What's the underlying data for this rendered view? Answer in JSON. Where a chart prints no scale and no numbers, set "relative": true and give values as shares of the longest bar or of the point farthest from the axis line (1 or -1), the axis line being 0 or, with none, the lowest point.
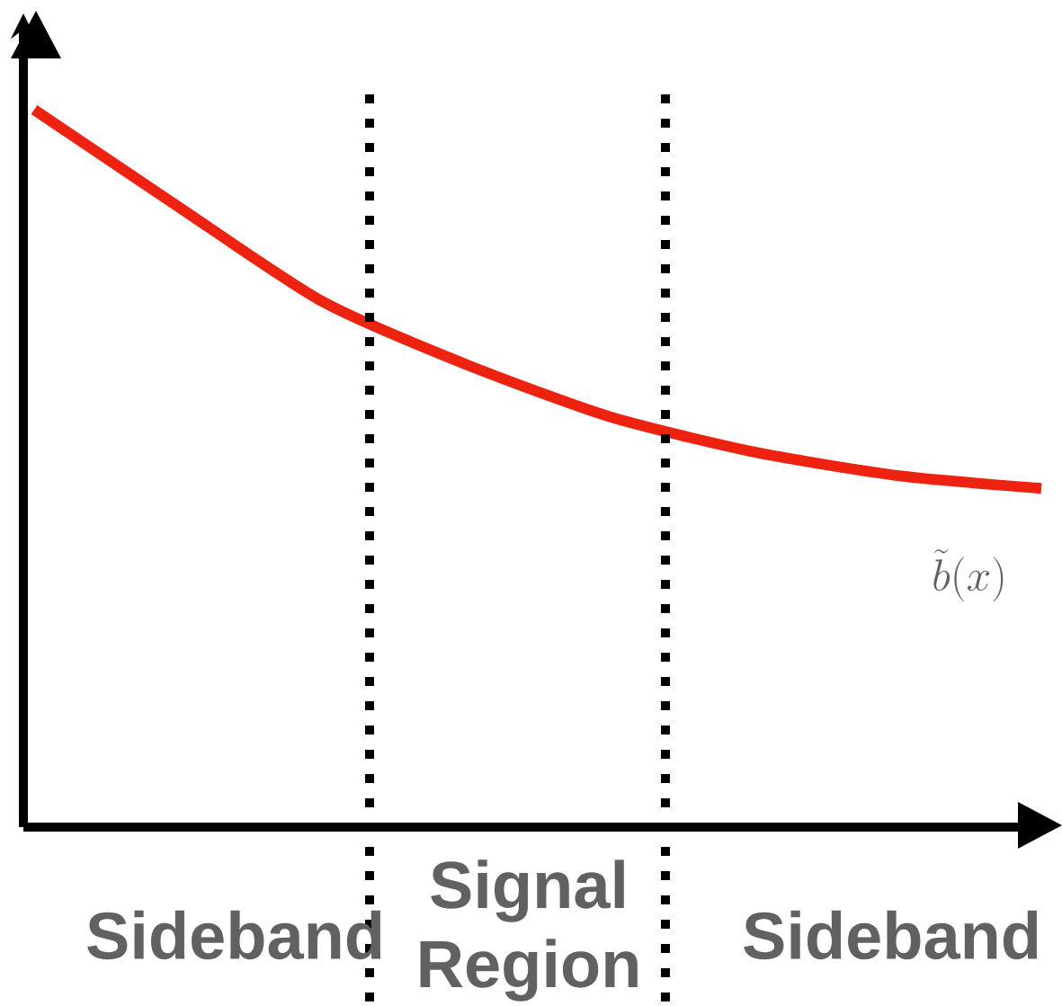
{
  "chart_data": {
    "type": "line",
    "relative": true,
    "categories": [
      null,
      null,
      null,
      null,
      null,
      null,
      null,
      null
    ],
    "series": [
      {
        "name": "\\tilde{b}(x)",
        "color": "#ee2211",
        "values": [
          1,
          0.865,
          0.733,
          0.645,
          0.572,
          0.523,
          0.49,
          0.472
        ]
      }
    ],
    "annotations": [
      "Sideband",
      "Signal Region",
      "Sideband"
    ],
    "legend": false,
    "marker": "none"
  }
}
